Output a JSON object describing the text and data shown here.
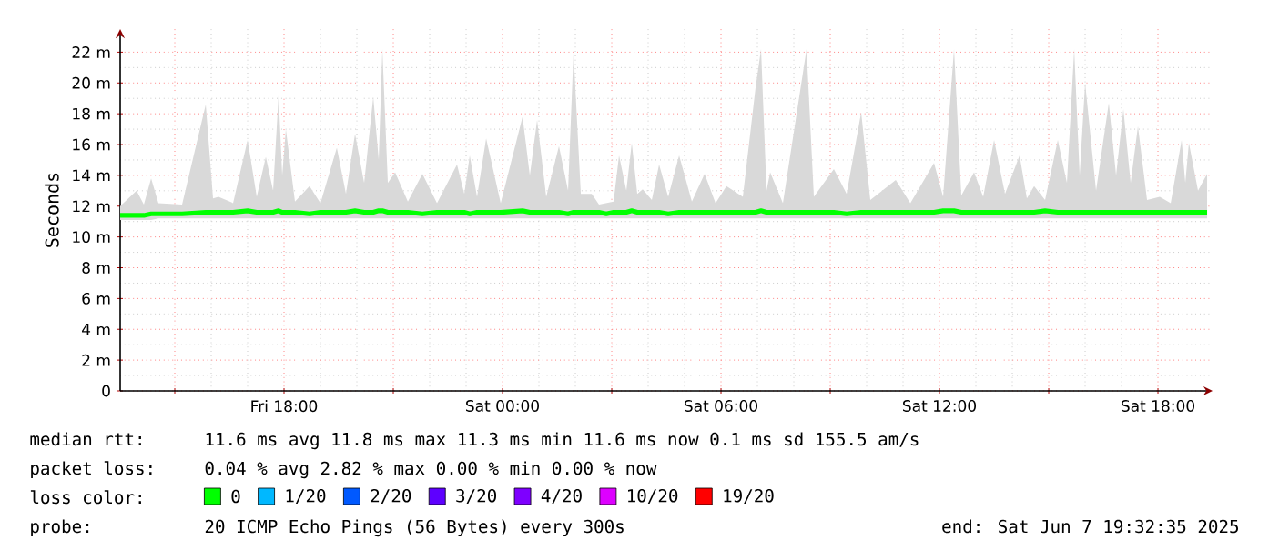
{
  "chart_data": {
    "type": "line",
    "ylabel": "Seconds",
    "legend_title": "loss color:",
    "legend": "bottom",
    "grid": true,
    "xlim": [
      "2025-06-06T13:30",
      "2025-06-07T19:30"
    ],
    "xticks": [
      {
        "value": "2025-06-06T15:00",
        "label": null
      },
      {
        "value": "2025-06-06T18:00",
        "label": "Fri 18:00"
      },
      {
        "value": "2025-06-06T21:00",
        "label": null
      },
      {
        "value": "2025-06-07T00:00",
        "label": "Sat 00:00"
      },
      {
        "value": "2025-06-07T03:00",
        "label": null
      },
      {
        "value": "2025-06-07T06:00",
        "label": "Sat 06:00"
      },
      {
        "value": "2025-06-07T09:00",
        "label": null
      },
      {
        "value": "2025-06-07T12:00",
        "label": "Sat 12:00"
      },
      {
        "value": "2025-06-07T15:00",
        "label": null
      },
      {
        "value": "2025-06-07T18:00",
        "label": "Sat 18:00"
      }
    ],
    "ylim": [
      0,
      23.5
    ],
    "yticks": [
      0,
      {
        "value": 2,
        "label": "2 m"
      },
      {
        "value": 4,
        "label": "4 m"
      },
      {
        "value": 6,
        "label": "6 m"
      },
      {
        "value": 8,
        "label": "8 m"
      },
      {
        "value": 10,
        "label": "10 m"
      },
      {
        "value": 12,
        "label": "12 m"
      },
      {
        "value": 14,
        "label": "14 m"
      },
      {
        "value": 16,
        "label": "16 m"
      },
      {
        "value": 18,
        "label": "18 m"
      },
      {
        "value": 20,
        "label": "20 m"
      },
      {
        "value": 22,
        "label": "22 m"
      }
    ],
    "x": [
      "2025-06-06T13:30",
      "2025-06-06T13:57",
      "2025-06-06T14:09",
      "2025-06-06T14:21",
      "2025-06-06T14:33",
      "2025-06-06T15:12",
      "2025-06-06T15:51",
      "2025-06-06T16:03",
      "2025-06-06T16:12",
      "2025-06-06T16:36",
      "2025-06-06T17:00",
      "2025-06-06T17:15",
      "2025-06-06T17:30",
      "2025-06-06T17:42",
      "2025-06-06T17:51",
      "2025-06-06T17:57",
      "2025-06-06T18:03",
      "2025-06-06T18:18",
      "2025-06-06T18:42",
      "2025-06-06T19:00",
      "2025-06-06T19:27",
      "2025-06-06T19:42",
      "2025-06-06T19:57",
      "2025-06-06T20:12",
      "2025-06-06T20:27",
      "2025-06-06T20:36",
      "2025-06-06T20:42",
      "2025-06-06T20:51",
      "2025-06-06T21:03",
      "2025-06-06T21:24",
      "2025-06-06T21:48",
      "2025-06-06T22:12",
      "2025-06-06T22:45",
      "2025-06-06T22:57",
      "2025-06-06T23:06",
      "2025-06-06T23:18",
      "2025-06-06T23:33",
      "2025-06-06T23:57",
      "2025-06-07T00:33",
      "2025-06-07T00:45",
      "2025-06-07T00:57",
      "2025-06-07T01:12",
      "2025-06-07T01:33",
      "2025-06-07T01:48",
      "2025-06-07T01:57",
      "2025-06-07T02:09",
      "2025-06-07T02:27",
      "2025-06-07T02:39",
      "2025-06-07T02:51",
      "2025-06-07T03:03",
      "2025-06-07T03:12",
      "2025-06-07T03:24",
      "2025-06-07T03:33",
      "2025-06-07T03:42",
      "2025-06-07T03:51",
      "2025-06-07T04:06",
      "2025-06-07T04:18",
      "2025-06-07T04:33",
      "2025-06-07T04:51",
      "2025-06-07T05:12",
      "2025-06-07T05:33",
      "2025-06-07T05:51",
      "2025-06-07T06:09",
      "2025-06-07T06:36",
      "2025-06-07T06:57",
      "2025-06-07T07:06",
      "2025-06-07T07:15",
      "2025-06-07T07:21",
      "2025-06-07T07:42",
      "2025-06-07T08:21",
      "2025-06-07T08:33",
      "2025-06-07T09:06",
      "2025-06-07T09:27",
      "2025-06-07T09:51",
      "2025-06-07T10:06",
      "2025-06-07T10:48",
      "2025-06-07T11:12",
      "2025-06-07T11:51",
      "2025-06-07T12:06",
      "2025-06-07T12:24",
      "2025-06-07T12:36",
      "2025-06-07T12:57",
      "2025-06-07T13:12",
      "2025-06-07T13:30",
      "2025-06-07T13:48",
      "2025-06-07T14:12",
      "2025-06-07T14:24",
      "2025-06-07T14:36",
      "2025-06-07T14:54",
      "2025-06-07T15:15",
      "2025-06-07T15:30",
      "2025-06-07T15:42",
      "2025-06-07T15:51",
      "2025-06-07T16:00",
      "2025-06-07T16:18",
      "2025-06-07T16:39",
      "2025-06-07T16:51",
      "2025-06-07T17:03",
      "2025-06-07T17:15",
      "2025-06-07T17:27",
      "2025-06-07T17:42",
      "2025-06-07T18:03",
      "2025-06-07T18:21",
      "2025-06-07T18:39",
      "2025-06-07T18:45",
      "2025-06-07T18:51",
      "2025-06-07T19:06",
      "2025-06-07T19:21"
    ],
    "series": [
      {
        "name": "0",
        "color": "#00ff00",
        "values": [
          11.4,
          11.4,
          11.4,
          11.5,
          11.5,
          11.5,
          11.6,
          11.6,
          11.6,
          11.6,
          11.7,
          11.6,
          11.6,
          11.6,
          11.7,
          11.6,
          11.6,
          11.6,
          11.5,
          11.6,
          11.6,
          11.6,
          11.7,
          11.6,
          11.6,
          11.7,
          11.7,
          11.6,
          11.6,
          11.6,
          11.5,
          11.6,
          11.6,
          11.6,
          11.5,
          11.6,
          11.6,
          11.6,
          11.7,
          11.6,
          11.6,
          11.6,
          11.6,
          11.5,
          11.6,
          11.6,
          11.6,
          11.6,
          11.5,
          11.6,
          11.6,
          11.6,
          11.7,
          11.6,
          11.6,
          11.6,
          11.6,
          11.5,
          11.6,
          11.6,
          11.6,
          11.6,
          11.6,
          11.6,
          11.6,
          11.7,
          11.6,
          11.6,
          11.6,
          11.6,
          11.6,
          11.6,
          11.5,
          11.6,
          11.6,
          11.6,
          11.6,
          11.6,
          11.7,
          11.7,
          11.6,
          11.6,
          11.6,
          11.6,
          11.6,
          11.6,
          11.6,
          11.6,
          11.7,
          11.6,
          11.6,
          11.6,
          11.6,
          11.6,
          11.6,
          11.6,
          11.6,
          11.6,
          11.6,
          11.6,
          11.6,
          11.6,
          11.6,
          11.6,
          11.6,
          11.6,
          11.6,
          11.6
        ],
        "lower": [
          11.1,
          11.1,
          11.1,
          11.1,
          11.2,
          11.2,
          11.2,
          11.2,
          11.2,
          11.2,
          11.2,
          11.2,
          11.2,
          11.2,
          11.2,
          11.2,
          11.2,
          11.2,
          11.2,
          11.2,
          11.2,
          11.2,
          11.2,
          11.2,
          11.2,
          11.2,
          11.2,
          11.2,
          11.2,
          11.2,
          11.2,
          11.2,
          11.2,
          11.2,
          11.2,
          11.2,
          11.2,
          11.2,
          11.2,
          11.2,
          11.2,
          11.2,
          11.2,
          11.2,
          11.2,
          11.2,
          11.2,
          11.2,
          11.2,
          11.2,
          11.2,
          11.2,
          11.2,
          11.2,
          11.2,
          11.2,
          11.2,
          11.2,
          11.2,
          11.2,
          11.2,
          11.2,
          11.2,
          11.2,
          11.2,
          11.2,
          11.2,
          11.2,
          11.2,
          11.2,
          11.2,
          11.2,
          11.2,
          11.2,
          11.2,
          11.2,
          11.2,
          11.2,
          11.2,
          11.2,
          11.2,
          11.2,
          11.2,
          11.2,
          11.2,
          11.2,
          11.2,
          11.2,
          11.2,
          11.2,
          11.2,
          11.2,
          11.2,
          11.2,
          11.2,
          11.2,
          11.2,
          11.2,
          11.2,
          11.2,
          11.2,
          11.2,
          11.2,
          11.2,
          11.2,
          11.2,
          11.2,
          11.2
        ],
        "upper": [
          12.0,
          13.0,
          12.1,
          13.8,
          12.2,
          12.1,
          18.6,
          12.5,
          12.6,
          12.2,
          16.3,
          12.6,
          15.2,
          13.0,
          19.2,
          14.0,
          17.0,
          12.3,
          13.3,
          12.2,
          15.8,
          12.8,
          16.7,
          13.5,
          19.1,
          15.0,
          22.2,
          13.5,
          14.2,
          12.3,
          14.1,
          12.2,
          14.7,
          12.8,
          15.3,
          12.6,
          16.4,
          12.2,
          17.8,
          14.0,
          17.6,
          12.6,
          15.9,
          13.0,
          22.0,
          12.8,
          12.8,
          12.1,
          12.2,
          12.3,
          15.3,
          13.0,
          16.1,
          12.8,
          13.1,
          12.4,
          14.7,
          12.6,
          15.3,
          12.3,
          14.1,
          12.2,
          13.3,
          12.6,
          19.7,
          22.2,
          13.0,
          14.2,
          12.2,
          22.2,
          12.6,
          14.4,
          12.8,
          18.1,
          12.4,
          13.7,
          12.2,
          14.8,
          12.6,
          22.2,
          12.7,
          14.2,
          12.6,
          16.3,
          12.8,
          15.3,
          12.5,
          13.3,
          12.4,
          16.3,
          13.5,
          22.2,
          14.0,
          20.0,
          13.0,
          18.7,
          14.0,
          18.3,
          13.5,
          17.2,
          12.4,
          12.6,
          12.2,
          16.3,
          13.5,
          16.1,
          13.0,
          14.1
        ]
      },
      {
        "name": "1/20",
        "color": "#00b8ff",
        "values": [
          null,
          null,
          null,
          null,
          null,
          null,
          null,
          null,
          null,
          null,
          null,
          null,
          null,
          null,
          null,
          null,
          null,
          null,
          null,
          null,
          null,
          null,
          null,
          null,
          null,
          null,
          null,
          null,
          null,
          null,
          null,
          null,
          null,
          null,
          null,
          null,
          null,
          null,
          null,
          null,
          null,
          null,
          null,
          null,
          null,
          null,
          null,
          null,
          null,
          null,
          null,
          null,
          null,
          null,
          null,
          null,
          null,
          null,
          null,
          null,
          null,
          null,
          null,
          null,
          null,
          null,
          null,
          null,
          null,
          null,
          null,
          null,
          null,
          null,
          null,
          null,
          null,
          null,
          null,
          null,
          null,
          null,
          null,
          null,
          null,
          null,
          null,
          null,
          null,
          null,
          null,
          null,
          null,
          null,
          null,
          null,
          null,
          null,
          null,
          null,
          null,
          null,
          null,
          null,
          null,
          null,
          null,
          null
        ]
      },
      {
        "name": "2/20",
        "color": "#0059ff",
        "values": [
          null,
          null,
          null,
          null,
          null,
          null,
          null,
          null,
          null,
          null,
          null,
          null,
          null,
          null,
          null,
          null,
          null,
          null,
          null,
          null,
          null,
          null,
          null,
          null,
          null,
          null,
          null,
          null,
          null,
          null,
          null,
          null,
          null,
          null,
          null,
          null,
          null,
          null,
          null,
          null,
          null,
          null,
          null,
          null,
          null,
          null,
          null,
          null,
          null,
          null,
          null,
          null,
          null,
          null,
          null,
          null,
          null,
          null,
          null,
          null,
          null,
          null,
          null,
          null,
          null,
          null,
          null,
          null,
          null,
          null,
          null,
          null,
          null,
          null,
          null,
          null,
          null,
          null,
          null,
          null,
          null,
          null,
          null,
          null,
          null,
          null,
          null,
          null,
          null,
          null,
          null,
          null,
          null,
          null,
          null,
          null,
          null,
          null,
          null,
          null,
          null,
          null,
          null,
          null,
          null,
          null,
          null,
          null
        ]
      },
      {
        "name": "3/20",
        "color": "#5e00ff",
        "values": [
          null,
          null,
          null,
          null,
          null,
          null,
          null,
          null,
          null,
          null,
          null,
          null,
          null,
          null,
          null,
          null,
          null,
          null,
          null,
          null,
          null,
          null,
          null,
          null,
          null,
          null,
          null,
          null,
          null,
          null,
          null,
          null,
          null,
          null,
          null,
          null,
          null,
          null,
          null,
          null,
          null,
          null,
          null,
          null,
          null,
          null,
          null,
          null,
          null,
          null,
          null,
          null,
          null,
          null,
          null,
          null,
          null,
          null,
          null,
          null,
          null,
          null,
          null,
          null,
          null,
          null,
          null,
          null,
          null,
          null,
          null,
          null,
          null,
          null,
          null,
          null,
          null,
          null,
          null,
          null,
          null,
          null,
          null,
          null,
          null,
          null,
          null,
          null,
          null,
          null,
          null,
          null,
          null,
          null,
          null,
          null,
          null,
          null,
          null,
          null,
          null,
          null,
          null,
          null,
          null,
          null,
          null,
          null
        ]
      },
      {
        "name": "4/20",
        "color": "#7e00ff",
        "values": [
          null,
          null,
          null,
          null,
          null,
          null,
          null,
          null,
          null,
          null,
          null,
          null,
          null,
          null,
          null,
          null,
          null,
          null,
          null,
          null,
          null,
          null,
          null,
          null,
          null,
          null,
          null,
          null,
          null,
          null,
          null,
          null,
          null,
          null,
          null,
          null,
          null,
          null,
          null,
          null,
          null,
          null,
          null,
          null,
          null,
          null,
          null,
          null,
          null,
          null,
          null,
          null,
          null,
          null,
          null,
          null,
          null,
          null,
          null,
          null,
          null,
          null,
          null,
          null,
          null,
          null,
          null,
          null,
          null,
          null,
          null,
          null,
          null,
          null,
          null,
          null,
          null,
          null,
          null,
          null,
          null,
          null,
          null,
          null,
          null,
          null,
          null,
          null,
          null,
          null,
          null,
          null,
          null,
          null,
          null,
          null,
          null,
          null,
          null,
          null,
          null,
          null,
          null,
          null,
          null,
          null,
          null,
          null
        ]
      },
      {
        "name": "10/20",
        "color": "#dd00ff",
        "values": [
          null,
          null,
          null,
          null,
          null,
          null,
          null,
          null,
          null,
          null,
          null,
          null,
          null,
          null,
          null,
          null,
          null,
          null,
          null,
          null,
          null,
          null,
          null,
          null,
          null,
          null,
          null,
          null,
          null,
          null,
          null,
          null,
          null,
          null,
          null,
          null,
          null,
          null,
          null,
          null,
          null,
          null,
          null,
          null,
          null,
          null,
          null,
          null,
          null,
          null,
          null,
          null,
          null,
          null,
          null,
          null,
          null,
          null,
          null,
          null,
          null,
          null,
          null,
          null,
          null,
          null,
          null,
          null,
          null,
          null,
          null,
          null,
          null,
          null,
          null,
          null,
          null,
          null,
          null,
          null,
          null,
          null,
          null,
          null,
          null,
          null,
          null,
          null,
          null,
          null,
          null,
          null,
          null,
          null,
          null,
          null,
          null,
          null,
          null,
          null,
          null,
          null,
          null,
          null,
          null,
          null,
          null,
          null
        ]
      },
      {
        "name": "19/20",
        "color": "#ff0000",
        "values": [
          null,
          null,
          null,
          null,
          null,
          null,
          null,
          null,
          null,
          null,
          null,
          null,
          null,
          null,
          null,
          null,
          null,
          null,
          null,
          null,
          null,
          null,
          null,
          null,
          null,
          null,
          null,
          null,
          null,
          null,
          null,
          null,
          null,
          null,
          null,
          null,
          null,
          null,
          null,
          null,
          null,
          null,
          null,
          null,
          null,
          null,
          null,
          null,
          null,
          null,
          null,
          null,
          null,
          null,
          null,
          null,
          null,
          null,
          null,
          null,
          null,
          null,
          null,
          null,
          null,
          null,
          null,
          null,
          null,
          null,
          null,
          null,
          null,
          null,
          null,
          null,
          null,
          null,
          null,
          null,
          null,
          null,
          null,
          null,
          null,
          null,
          null,
          null,
          null,
          null,
          null,
          null,
          null,
          null,
          null,
          null,
          null,
          null,
          null,
          null,
          null,
          null,
          null,
          null,
          null,
          null,
          null,
          null
        ]
      }
    ],
    "annotations": [
      "median rtt:",
      "11.6 ms avg 11.8 ms max 11.3 ms min 11.6 ms now 0.1 ms sd 155.5 am/s",
      "packet loss:",
      "0.04 % avg 2.82 % max 0.00 % min 0.00 % now",
      "probe:",
      "20 ICMP Echo Pings (56 Bytes) every 300s",
      "end: Sat Jun 7 19:32:35 2025"
    ]
  }
}
